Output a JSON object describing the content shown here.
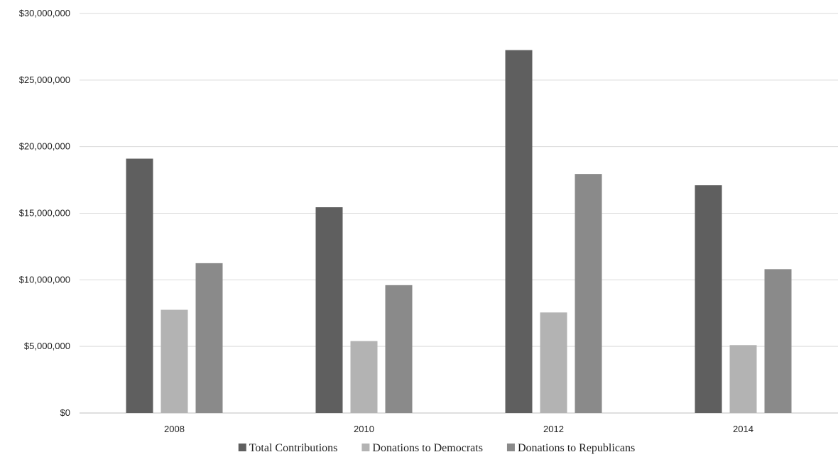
{
  "chart_data": {
    "type": "bar",
    "categories": [
      "2008",
      "2010",
      "2012",
      "2014"
    ],
    "series": [
      {
        "name": "Total Contributions",
        "color": "#5f5f5f",
        "values": [
          19100000,
          15450000,
          27250000,
          17100000
        ]
      },
      {
        "name": "Donations to Democrats",
        "color": "#b3b3b3",
        "values": [
          7750000,
          5400000,
          7550000,
          5100000
        ]
      },
      {
        "name": "Donations to Republicans",
        "color": "#8a8a8a",
        "values": [
          11250000,
          9600000,
          17950000,
          10800000
        ]
      }
    ],
    "yticks": [
      "$0",
      "$5,000,000",
      "$10,000,000",
      "$15,000,000",
      "$20,000,000",
      "$25,000,000",
      "$30,000,000"
    ],
    "ytick_values": [
      0,
      5000000,
      10000000,
      15000000,
      20000000,
      25000000,
      30000000
    ],
    "ylim": [
      0,
      30000000
    ],
    "grid": true,
    "legend_position": "bottom"
  }
}
